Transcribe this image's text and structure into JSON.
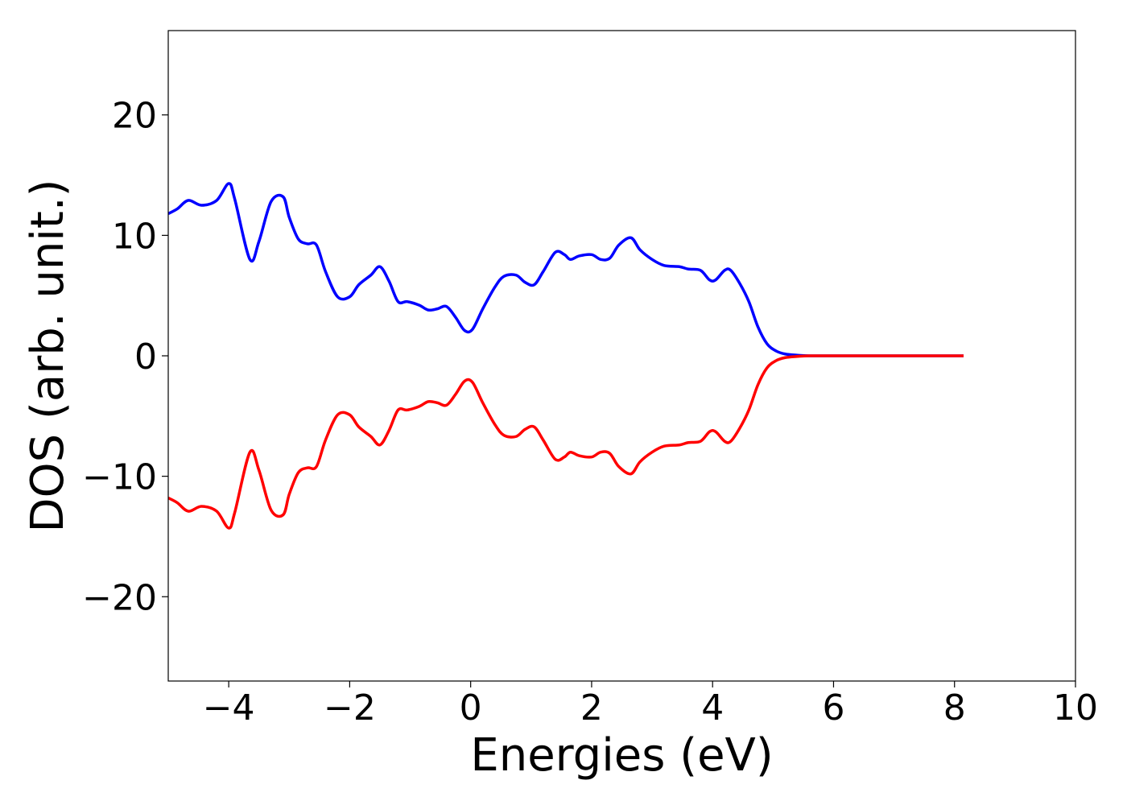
{
  "chart_data": {
    "type": "line",
    "title": "",
    "xlabel": "Energies (eV)",
    "ylabel": "DOS (arb. unit.)",
    "xlim": [
      -5,
      10
    ],
    "ylim": [
      -27,
      27
    ],
    "xticks": [
      -4,
      -2,
      0,
      2,
      4,
      6,
      8,
      10
    ],
    "xtick_labels": [
      "−4",
      "−2",
      "0",
      "2",
      "4",
      "6",
      "8",
      "10"
    ],
    "yticks": [
      -20,
      -10,
      0,
      10,
      20
    ],
    "ytick_labels": [
      "−20",
      "−10",
      "0",
      "10",
      "20"
    ],
    "grid": false,
    "legend": "none",
    "series": [
      {
        "color": "#0000ff",
        "x": [
          -5.0,
          -4.85,
          -4.67,
          -4.45,
          -4.2,
          -4.0,
          -3.9,
          -3.65,
          -3.5,
          -3.3,
          -3.1,
          -3.0,
          -2.85,
          -2.7,
          -2.55,
          -2.4,
          -2.2,
          -2.0,
          -1.85,
          -1.65,
          -1.5,
          -1.35,
          -1.2,
          -1.05,
          -0.85,
          -0.7,
          -0.55,
          -0.4,
          -0.25,
          -0.1,
          0.03,
          0.2,
          0.4,
          0.55,
          0.75,
          0.9,
          1.05,
          1.2,
          1.4,
          1.55,
          1.65,
          1.8,
          2.0,
          2.15,
          2.3,
          2.45,
          2.65,
          2.8,
          3.0,
          3.2,
          3.45,
          3.6,
          3.8,
          3.95,
          4.05,
          4.2,
          4.3,
          4.45,
          4.6,
          4.75,
          4.9,
          5.05,
          5.2,
          5.4,
          5.6,
          6.0,
          7.0,
          8.15
        ],
        "y": [
          11.8,
          12.2,
          12.9,
          12.5,
          12.9,
          14.3,
          13.0,
          8.0,
          9.5,
          12.8,
          13.2,
          11.5,
          9.7,
          9.3,
          9.2,
          7.0,
          4.9,
          4.9,
          5.9,
          6.7,
          7.4,
          6.2,
          4.5,
          4.5,
          4.2,
          3.8,
          3.9,
          4.1,
          3.2,
          2.1,
          2.2,
          3.9,
          5.7,
          6.6,
          6.7,
          6.1,
          5.9,
          7.0,
          8.6,
          8.4,
          8.0,
          8.3,
          8.4,
          8.0,
          8.1,
          9.2,
          9.8,
          8.8,
          8.0,
          7.5,
          7.4,
          7.2,
          7.1,
          6.3,
          6.3,
          7.1,
          7.1,
          6.0,
          4.5,
          2.4,
          1.0,
          0.4,
          0.15,
          0.05,
          0.0,
          0.0,
          0.0,
          0.0
        ]
      },
      {
        "color": "#ff0000",
        "x": [
          -5.0,
          -4.85,
          -4.67,
          -4.45,
          -4.2,
          -4.0,
          -3.9,
          -3.65,
          -3.5,
          -3.3,
          -3.1,
          -3.0,
          -2.85,
          -2.7,
          -2.55,
          -2.4,
          -2.2,
          -2.0,
          -1.85,
          -1.65,
          -1.5,
          -1.35,
          -1.2,
          -1.05,
          -0.85,
          -0.7,
          -0.55,
          -0.4,
          -0.25,
          -0.1,
          0.03,
          0.2,
          0.4,
          0.55,
          0.75,
          0.9,
          1.05,
          1.2,
          1.4,
          1.55,
          1.65,
          1.8,
          2.0,
          2.15,
          2.3,
          2.45,
          2.65,
          2.8,
          3.0,
          3.2,
          3.45,
          3.6,
          3.8,
          3.95,
          4.05,
          4.2,
          4.3,
          4.45,
          4.6,
          4.75,
          4.9,
          5.05,
          5.2,
          5.4,
          5.6,
          6.0,
          7.0,
          8.15
        ],
        "y": [
          -11.8,
          -12.2,
          -12.9,
          -12.5,
          -12.9,
          -14.3,
          -13.0,
          -8.0,
          -9.5,
          -12.8,
          -13.2,
          -11.5,
          -9.7,
          -9.3,
          -9.2,
          -7.0,
          -4.9,
          -4.9,
          -5.9,
          -6.7,
          -7.4,
          -6.2,
          -4.5,
          -4.5,
          -4.2,
          -3.8,
          -3.9,
          -4.1,
          -3.2,
          -2.1,
          -2.2,
          -3.9,
          -5.7,
          -6.6,
          -6.7,
          -6.1,
          -5.9,
          -7.0,
          -8.6,
          -8.4,
          -8.0,
          -8.3,
          -8.4,
          -8.0,
          -8.1,
          -9.2,
          -9.8,
          -8.8,
          -8.0,
          -7.5,
          -7.4,
          -7.2,
          -7.1,
          -6.3,
          -6.3,
          -7.1,
          -7.1,
          -6.0,
          -4.5,
          -2.4,
          -1.0,
          -0.4,
          -0.15,
          -0.05,
          0.0,
          0.0,
          0.0,
          0.0
        ]
      }
    ]
  }
}
